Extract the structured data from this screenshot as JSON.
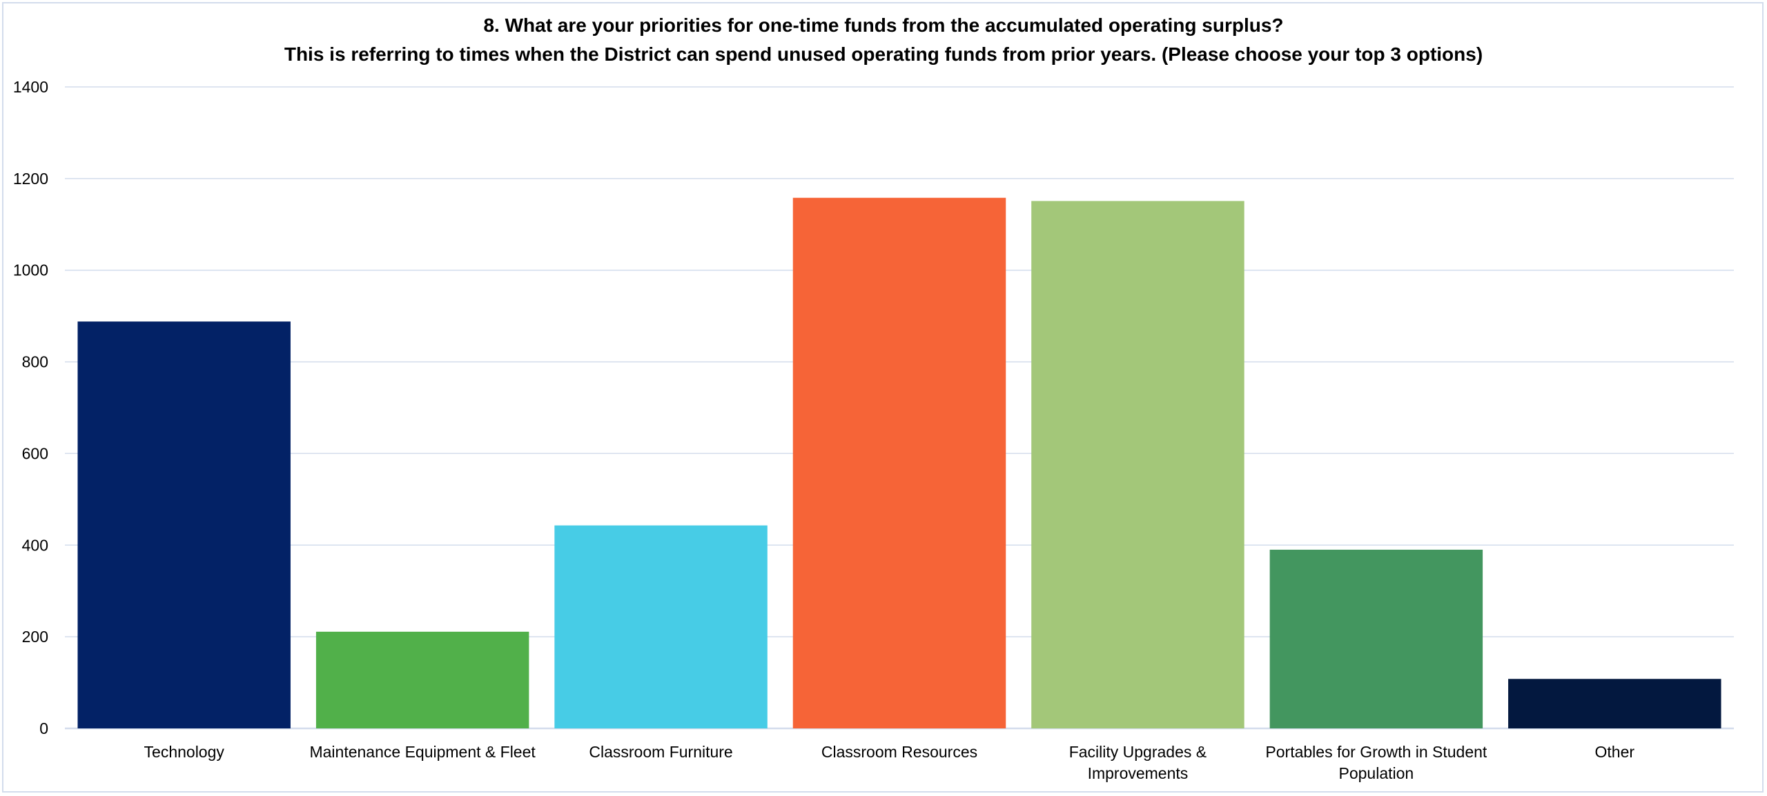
{
  "chart_data": {
    "type": "bar",
    "title": "8.  What are your priorities for one-time funds from the accumulated operating surplus?",
    "subtitle": "This is referring to times when the District can spend unused operating funds from prior years. (Please choose your top 3 options)",
    "xlabel": "",
    "ylabel": "",
    "categories": [
      "Technology",
      "Maintenance Equipment & Fleet",
      "Classroom Furniture",
      "Classroom Resources",
      "Facility Upgrades & Improvements",
      "Portables for Growth in Student Population",
      "Other"
    ],
    "category_lines": [
      [
        "Technology"
      ],
      [
        "Maintenance Equipment & Fleet"
      ],
      [
        "Classroom Furniture"
      ],
      [
        "Classroom Resources"
      ],
      [
        "Facility Upgrades &",
        "Improvements"
      ],
      [
        "Portables for Growth in Student",
        "Population"
      ],
      [
        "Other"
      ]
    ],
    "values": [
      888,
      211,
      443,
      1158,
      1151,
      390,
      108
    ],
    "colors": [
      "#032266",
      "#51b04a",
      "#47cce6",
      "#f66437",
      "#a3c779",
      "#43965f",
      "#03183f"
    ],
    "ylim": [
      0,
      1400
    ],
    "yticks": [
      0,
      200,
      400,
      600,
      800,
      1000,
      1200,
      1400
    ],
    "grid": true,
    "gridline_color": "#d3dcec",
    "legend": "none"
  }
}
